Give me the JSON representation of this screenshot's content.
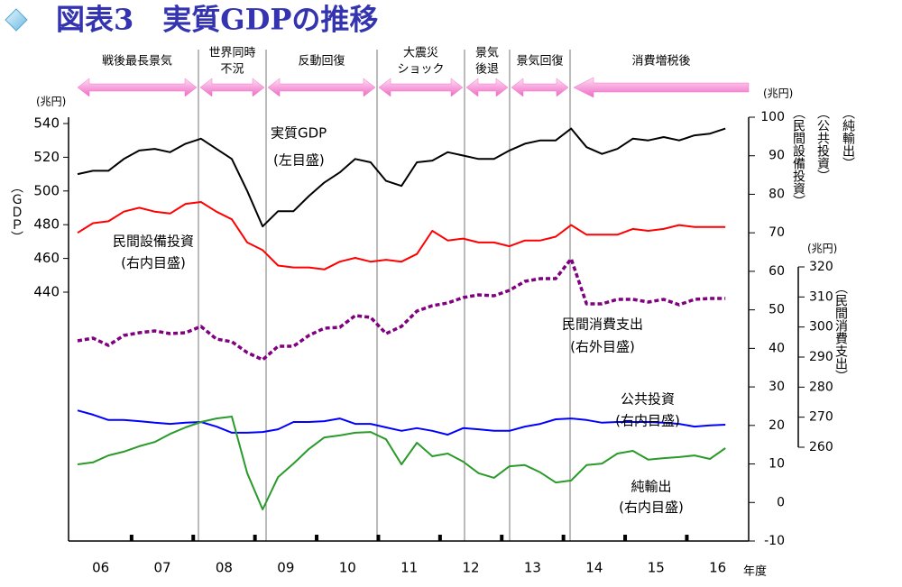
{
  "chart_data": {
    "type": "line",
    "title": "図表3　実質GDPの推移",
    "categories": [
      null,
      "06",
      null,
      null,
      null,
      "07",
      null,
      null,
      null,
      "08",
      null,
      null,
      null,
      "09",
      null,
      null,
      null,
      "10",
      null,
      null,
      null,
      "11",
      null,
      null,
      null,
      "12",
      null,
      null,
      null,
      "13",
      null,
      null,
      null,
      "14",
      null,
      null,
      null,
      "15",
      null,
      null,
      null,
      "16",
      null
    ],
    "xlabel": "年度",
    "periods": [
      {
        "label": [
          "戦後最長景気"
        ]
      },
      {
        "label": [
          "世界同時",
          "不況"
        ]
      },
      {
        "label": [
          "反動回復"
        ]
      },
      {
        "label": [
          "大震災",
          "ショック"
        ]
      },
      {
        "label": [
          "景気",
          "後退"
        ]
      },
      {
        "label": [
          "景気回復"
        ]
      },
      {
        "label": [
          "消費増税後"
        ]
      }
    ],
    "ylabel": "（ＧＤＰ）",
    "yunit": "(兆円)",
    "ylim": [
      440,
      540
    ],
    "yticks": [
      440,
      460,
      480,
      500,
      520,
      540
    ],
    "y2unit": "(兆円)",
    "y2labels": [
      "（民間設備投資）",
      "（公共投資）",
      "（純輸出）"
    ],
    "y2lim": [
      -10,
      100
    ],
    "y2ticks": [
      -10,
      0,
      10,
      20,
      30,
      40,
      50,
      60,
      70,
      80,
      90,
      100
    ],
    "y3unit": "(兆円)",
    "y3label": "（民間消費支出）",
    "y3lim": [
      260,
      320
    ],
    "y3ticks": [
      260,
      270,
      280,
      290,
      300,
      310,
      320
    ],
    "series": [
      {
        "name": "実質GDP",
        "scale_label": "(左目盛)",
        "color": "#000000",
        "axis": "y",
        "values": [
          510,
          512,
          512,
          519,
          524,
          525,
          523,
          528,
          531,
          525,
          519,
          500,
          479,
          488,
          488,
          497,
          505,
          511,
          519,
          517,
          506,
          503,
          517,
          518,
          523,
          521,
          519,
          519,
          524,
          528,
          530,
          530,
          537,
          526,
          522,
          525,
          531,
          530,
          532,
          530,
          533,
          534,
          537
        ]
      },
      {
        "name": "民間設備投資",
        "scale_label": "(右内目盛)",
        "color": "#ff0000",
        "axis": "y2",
        "values": [
          70,
          72.5,
          73,
          75.5,
          76.5,
          75.5,
          75,
          77.5,
          78,
          75.5,
          73.5,
          67.5,
          65.5,
          61.5,
          61,
          61,
          60.5,
          62.5,
          63.5,
          62.5,
          63,
          62.5,
          64.5,
          70.5,
          68,
          68.5,
          67.5,
          67.5,
          66.5,
          68,
          68,
          69,
          72,
          69.5,
          69.5,
          69.5,
          71,
          70.5,
          71,
          72,
          71.5,
          71.5,
          71.5
        ]
      },
      {
        "name": "民間消費支出",
        "scale_label": "(右外目盛)",
        "color": "#800080",
        "axis": "y3",
        "dashed": true,
        "values": [
          295.4,
          296.3,
          293.9,
          297.2,
          298.1,
          298.7,
          297.8,
          298.1,
          300.2,
          296,
          295.1,
          291.5,
          289.1,
          293.6,
          293.6,
          297.2,
          299.6,
          299.9,
          303.8,
          303.2,
          297.8,
          300.2,
          305.3,
          307.1,
          308,
          309.8,
          310.7,
          310.4,
          312.2,
          315.2,
          316.1,
          316.1,
          322.7,
          307.7,
          307.7,
          309.2,
          309.2,
          308.3,
          309.2,
          307.4,
          309.2,
          309.5,
          309.5
        ]
      },
      {
        "name": "公共投資",
        "scale_label": "(右内目盛)",
        "color": "#0000ff",
        "axis": "y2",
        "values": [
          23.9,
          22.8,
          21.4,
          21.4,
          21.1,
          20.7,
          20.4,
          20.7,
          20.9,
          19.7,
          18.1,
          18.1,
          18.3,
          19,
          20.9,
          20.9,
          21.1,
          21.8,
          20.4,
          20.4,
          19.5,
          18.6,
          19.3,
          18.6,
          17.6,
          19.3,
          19,
          18.6,
          18.6,
          19.7,
          20.4,
          21.6,
          21.8,
          21.4,
          20.7,
          20.9,
          20.9,
          20.9,
          20.7,
          20.4,
          19.7,
          20,
          20.2
        ]
      },
      {
        "name": "純輸出",
        "scale_label": "(右内目盛)",
        "color": "#2a9a2a",
        "axis": "y2",
        "values": [
          9.9,
          10.4,
          12.2,
          13.2,
          14.6,
          15.7,
          17.8,
          19.5,
          20.9,
          21.8,
          22.3,
          7.6,
          -1.8,
          6.6,
          10.1,
          13.9,
          16.9,
          17.4,
          18.1,
          18.3,
          16.4,
          9.9,
          15.5,
          12,
          12.7,
          10.6,
          7.6,
          6.4,
          9.4,
          9.7,
          7.8,
          5.2,
          5.7,
          9.7,
          10.1,
          12.7,
          13.4,
          11.1,
          11.5,
          11.8,
          12.2,
          11.3,
          14.1
        ]
      }
    ]
  }
}
